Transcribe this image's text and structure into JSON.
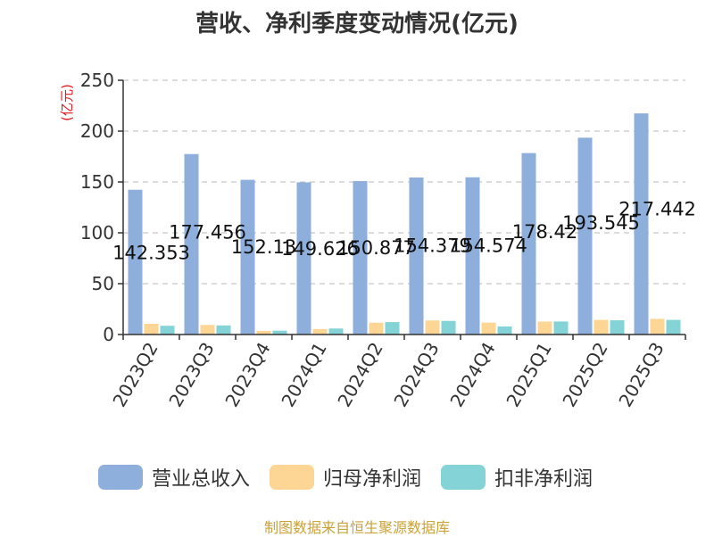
{
  "colors": {
    "revenue": "#8eaedb",
    "net_profit": "#fdd594",
    "deducted_profit": "#84d3d6",
    "axis": "#333333",
    "grid": "#c8c8c8",
    "ylabel": "#e0191d",
    "source": "#c9a23a"
  },
  "chart_data": {
    "type": "bar",
    "title": "营收、净利季度变动情况(亿元)",
    "ylabel": "(亿元)",
    "xlabel": "",
    "ylim": [
      0,
      250
    ],
    "yticks": [
      0,
      50,
      100,
      150,
      200,
      250
    ],
    "grid": true,
    "legend_position": "bottom",
    "categories": [
      "2023Q2",
      "2023Q3",
      "2023Q4",
      "2024Q1",
      "2024Q2",
      "2024Q3",
      "2024Q4",
      "2025Q1",
      "2025Q2",
      "2025Q3"
    ],
    "series": [
      {
        "name": "营业总收入",
        "color_key": "revenue",
        "values": [
          142.353,
          177.456,
          152.13,
          149.626,
          150.877,
          154.379,
          154.574,
          178.42,
          193.545,
          217.442
        ],
        "labels": [
          "142.353",
          "177.456",
          "152.13",
          "149.626",
          "150.877",
          "154.379",
          "154.574",
          "178.42",
          "193.545",
          "217.442"
        ]
      },
      {
        "name": "归母净利润",
        "color_key": "net_profit",
        "values": [
          10.5,
          9.4,
          3.6,
          5.4,
          11.6,
          13.8,
          11.7,
          12.7,
          14.4,
          15.4
        ]
      },
      {
        "name": "扣非净利润",
        "color_key": "deducted_profit",
        "values": [
          8.6,
          8.9,
          3.8,
          5.9,
          12.2,
          13.4,
          7.9,
          12.8,
          14.0,
          14.4
        ]
      }
    ]
  },
  "source_text": "制图数据来自恒生聚源数据库"
}
